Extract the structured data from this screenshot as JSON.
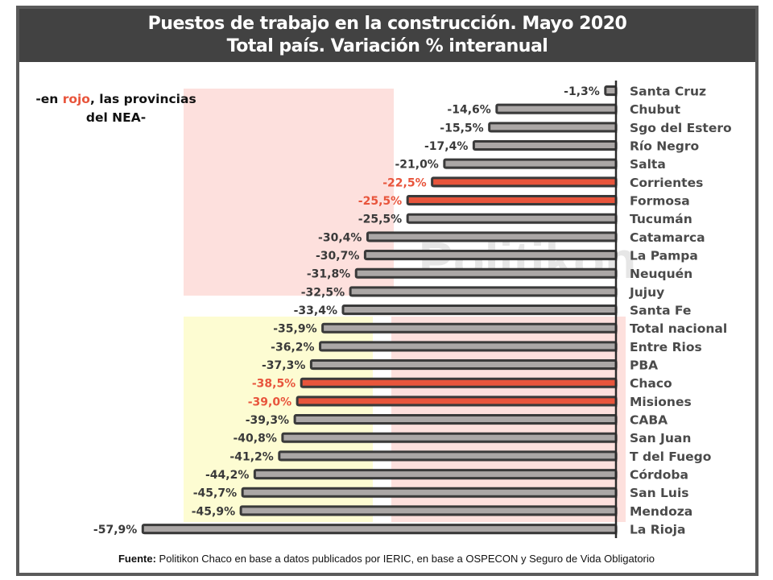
{
  "header": {
    "title_line1": "Puestos de trabajo en la construcción. Mayo 2020",
    "title_line2": "Total país. Variación % interanual"
  },
  "note": {
    "prefix": "-en ",
    "highlight": "rojo",
    "suffix": ", las provincias",
    "line2": "del NEA-"
  },
  "watermark": "Politikon",
  "source": {
    "label": "Fuente:",
    "text": " Politikon Chaco en base a datos publicados por IERIC, en base a OSPECON  y Seguro de Vida Obligatorio"
  },
  "colors": {
    "bar_default": "#aba7a6",
    "bar_highlight": "#e8553c",
    "bar_outline": "#3a3a3a",
    "label_default": "#3a3a3a",
    "label_highlight": "#e8553c",
    "panel_pink": "#fde0dd",
    "panel_yellow": "#fdfcd2",
    "header_bg": "#424242"
  },
  "chart_data": {
    "type": "bar",
    "orientation": "horizontal",
    "title": "Puestos de trabajo en la construcción. Mayo 2020 — Total país. Variación % interanual",
    "xlabel": "",
    "ylabel": "",
    "unit": "%",
    "grid": false,
    "legend": "none",
    "categories": [
      "Santa Cruz",
      "Chubut",
      "Sgo del Estero",
      "Río Negro",
      "Salta",
      "Corrientes",
      "Formosa",
      "Tucumán",
      "Catamarca",
      "La Pampa",
      "Neuquén",
      "Jujuy",
      "Santa Fe",
      "Total nacional",
      "Entre Rios",
      "PBA",
      "Chaco",
      "Misiones",
      "CABA",
      "San Juan",
      "T del Fuego",
      "Córdoba",
      "San Luis",
      "Mendoza",
      "La Rioja"
    ],
    "values": [
      -1.3,
      -14.6,
      -15.5,
      -17.4,
      -21.0,
      -22.5,
      -25.5,
      -25.5,
      -30.4,
      -30.7,
      -31.8,
      -32.5,
      -33.4,
      -35.9,
      -36.2,
      -37.3,
      -38.5,
      -39.0,
      -39.3,
      -40.8,
      -41.2,
      -44.2,
      -45.7,
      -45.9,
      -57.9
    ],
    "value_labels": [
      "-1,3%",
      "-14,6%",
      "-15,5%",
      "-17,4%",
      "-21,0%",
      "-22,5%",
      "-25,5%",
      "-25,5%",
      "-30,4%",
      "-30,7%",
      "-31,8%",
      "-32,5%",
      "-33,4%",
      "-35,9%",
      "-36,2%",
      "-37,3%",
      "-38,5%",
      "-39,0%",
      "-39,3%",
      "-40,8%",
      "-41,2%",
      "-44,2%",
      "-45,7%",
      "-45,9%",
      "-57,9%"
    ],
    "highlighted": [
      "Corrientes",
      "Formosa",
      "Chaco",
      "Misiones"
    ],
    "highlight_meaning": "provincias del NEA",
    "xlim": [
      -60,
      0
    ]
  }
}
